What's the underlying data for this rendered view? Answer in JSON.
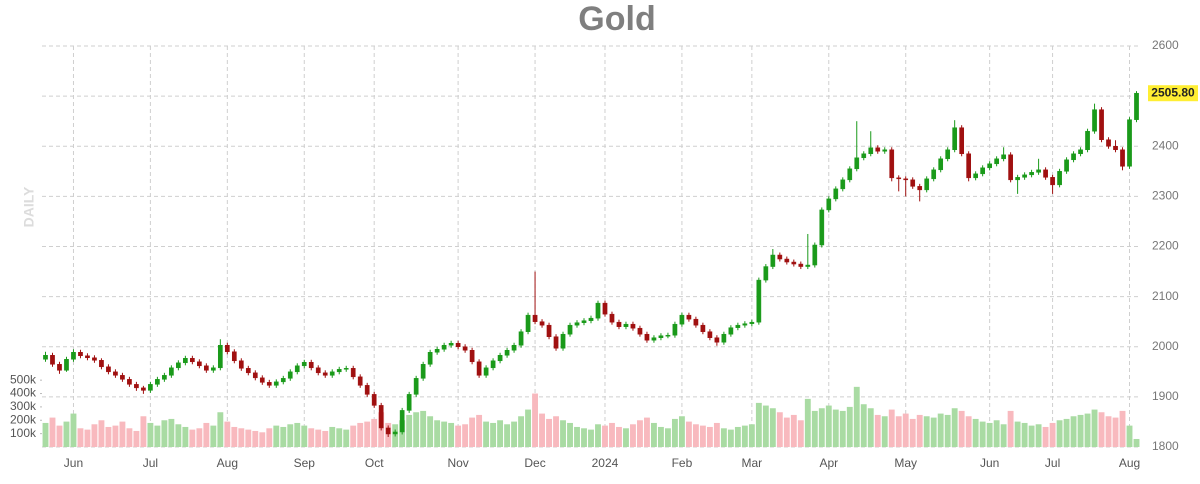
{
  "chart_data": {
    "type": "candlestick",
    "title": "Gold",
    "annotation": "DAILY",
    "last_price_label": "2505.80",
    "grid": true,
    "up_color": "#1a9a1a",
    "down_color": "#a01010",
    "volume_up_color": "#a9dba3",
    "volume_down_color": "#f8b9be",
    "xlim": [
      -0.5,
      156.5
    ],
    "xticks": [
      {
        "value": 4,
        "label": "Jun"
      },
      {
        "value": 15,
        "label": "Jul"
      },
      {
        "value": 26,
        "label": "Aug"
      },
      {
        "value": 37,
        "label": "Sep"
      },
      {
        "value": 47,
        "label": "Oct"
      },
      {
        "value": 59,
        "label": "Nov"
      },
      {
        "value": 70,
        "label": "Dec"
      },
      {
        "value": 80,
        "label": "2024"
      },
      {
        "value": 91,
        "label": "Feb"
      },
      {
        "value": 101,
        "label": "Mar"
      },
      {
        "value": 112,
        "label": "Apr"
      },
      {
        "value": 123,
        "label": "May"
      },
      {
        "value": 135,
        "label": "Jun"
      },
      {
        "value": 144,
        "label": "Jul"
      },
      {
        "value": 155,
        "label": "Aug"
      }
    ],
    "ylim": [
      1800,
      2600
    ],
    "yticks": [
      1800,
      1900,
      2000,
      2100,
      2200,
      2300,
      2400,
      2500,
      2600
    ],
    "y2lim": [
      0,
      3000000
    ],
    "y2ticks": [
      {
        "value": 100000,
        "label": "100k"
      },
      {
        "value": 200000,
        "label": "200k"
      },
      {
        "value": 300000,
        "label": "300k"
      },
      {
        "value": 400000,
        "label": "400k"
      },
      {
        "value": 500000,
        "label": "500k"
      }
    ],
    "ohlc": [
      [
        1975,
        1990,
        1970,
        1983
      ],
      [
        1983,
        1988,
        1960,
        1965
      ],
      [
        1965,
        1970,
        1946,
        1953
      ],
      [
        1953,
        1980,
        1950,
        1975
      ],
      [
        1975,
        1995,
        1970,
        1989
      ],
      [
        1989,
        1994,
        1977,
        1982
      ],
      [
        1982,
        1987,
        1973,
        1978
      ],
      [
        1978,
        1983,
        1968,
        1973
      ],
      [
        1973,
        1977,
        1955,
        1960
      ],
      [
        1960,
        1965,
        1945,
        1950
      ],
      [
        1950,
        1955,
        1938,
        1943
      ],
      [
        1943,
        1948,
        1930,
        1935
      ],
      [
        1935,
        1940,
        1920,
        1925
      ],
      [
        1925,
        1930,
        1912,
        1918
      ],
      [
        1918,
        1922,
        1906,
        1913
      ],
      [
        1913,
        1930,
        1908,
        1925
      ],
      [
        1925,
        1940,
        1920,
        1935
      ],
      [
        1935,
        1948,
        1930,
        1943
      ],
      [
        1943,
        1963,
        1938,
        1958
      ],
      [
        1958,
        1973,
        1953,
        1968
      ],
      [
        1968,
        1982,
        1963,
        1977
      ],
      [
        1977,
        1982,
        1965,
        1970
      ],
      [
        1970,
        1975,
        1957,
        1962
      ],
      [
        1962,
        1967,
        1948,
        1953
      ],
      [
        1953,
        1963,
        1948,
        1958
      ],
      [
        1958,
        2015,
        1953,
        2003
      ],
      [
        2003,
        2008,
        1985,
        1990
      ],
      [
        1990,
        1995,
        1967,
        1972
      ],
      [
        1972,
        1977,
        1952,
        1957
      ],
      [
        1957,
        1962,
        1943,
        1948
      ],
      [
        1948,
        1953,
        1933,
        1938
      ],
      [
        1938,
        1943,
        1924,
        1929
      ],
      [
        1929,
        1934,
        1918,
        1923
      ],
      [
        1923,
        1935,
        1918,
        1930
      ],
      [
        1930,
        1942,
        1925,
        1937
      ],
      [
        1937,
        1955,
        1932,
        1950
      ],
      [
        1950,
        1967,
        1945,
        1962
      ],
      [
        1962,
        1974,
        1957,
        1969
      ],
      [
        1969,
        1974,
        1953,
        1958
      ],
      [
        1958,
        1963,
        1943,
        1948
      ],
      [
        1948,
        1953,
        1938,
        1943
      ],
      [
        1943,
        1955,
        1938,
        1950
      ],
      [
        1950,
        1960,
        1945,
        1955
      ],
      [
        1955,
        1962,
        1950,
        1957
      ],
      [
        1957,
        1962,
        1935,
        1940
      ],
      [
        1940,
        1945,
        1918,
        1923
      ],
      [
        1923,
        1928,
        1900,
        1905
      ],
      [
        1905,
        1910,
        1878,
        1883
      ],
      [
        1883,
        1888,
        1833,
        1838
      ],
      [
        1838,
        1843,
        1820,
        1826
      ],
      [
        1826,
        1835,
        1821,
        1830
      ],
      [
        1830,
        1878,
        1825,
        1873
      ],
      [
        1873,
        1910,
        1868,
        1905
      ],
      [
        1905,
        1942,
        1900,
        1937
      ],
      [
        1937,
        1970,
        1932,
        1965
      ],
      [
        1965,
        1994,
        1960,
        1989
      ],
      [
        1989,
        2000,
        1984,
        1995
      ],
      [
        1995,
        2008,
        1990,
        2003
      ],
      [
        2003,
        2012,
        1998,
        2007
      ],
      [
        2007,
        2012,
        1995,
        2000
      ],
      [
        2000,
        2005,
        1988,
        1993
      ],
      [
        1993,
        1998,
        1965,
        1970
      ],
      [
        1970,
        1975,
        1938,
        1943
      ],
      [
        1943,
        1963,
        1938,
        1958
      ],
      [
        1958,
        1977,
        1953,
        1972
      ],
      [
        1972,
        1988,
        1967,
        1983
      ],
      [
        1983,
        1998,
        1978,
        1993
      ],
      [
        1993,
        2008,
        1988,
        2003
      ],
      [
        2003,
        2035,
        1998,
        2030
      ],
      [
        2030,
        2068,
        2025,
        2063
      ],
      [
        2063,
        2150,
        2045,
        2050
      ],
      [
        2050,
        2055,
        2038,
        2043
      ],
      [
        2043,
        2048,
        2015,
        2020
      ],
      [
        2020,
        2025,
        1992,
        1997
      ],
      [
        1997,
        2030,
        1992,
        2025
      ],
      [
        2025,
        2048,
        2020,
        2043
      ],
      [
        2043,
        2053,
        2038,
        2048
      ],
      [
        2048,
        2057,
        2043,
        2052
      ],
      [
        2052,
        2062,
        2047,
        2057
      ],
      [
        2057,
        2092,
        2052,
        2087
      ],
      [
        2087,
        2092,
        2060,
        2065
      ],
      [
        2065,
        2070,
        2044,
        2049
      ],
      [
        2049,
        2054,
        2035,
        2040
      ],
      [
        2040,
        2050,
        2035,
        2045
      ],
      [
        2045,
        2050,
        2032,
        2037
      ],
      [
        2037,
        2042,
        2020,
        2025
      ],
      [
        2025,
        2030,
        2008,
        2013
      ],
      [
        2013,
        2023,
        2008,
        2018
      ],
      [
        2018,
        2027,
        2013,
        2022
      ],
      [
        2022,
        2028,
        2017,
        2023
      ],
      [
        2023,
        2050,
        2018,
        2045
      ],
      [
        2045,
        2068,
        2040,
        2063
      ],
      [
        2063,
        2068,
        2050,
        2055
      ],
      [
        2055,
        2060,
        2038,
        2043
      ],
      [
        2043,
        2048,
        2025,
        2030
      ],
      [
        2030,
        2035,
        2013,
        2018
      ],
      [
        2018,
        2023,
        2002,
        2009
      ],
      [
        2009,
        2030,
        2004,
        2025
      ],
      [
        2025,
        2043,
        2020,
        2038
      ],
      [
        2038,
        2048,
        2033,
        2043
      ],
      [
        2043,
        2051,
        2038,
        2046
      ],
      [
        2046,
        2054,
        2041,
        2049
      ],
      [
        2049,
        2138,
        2044,
        2133
      ],
      [
        2133,
        2165,
        2128,
        2160
      ],
      [
        2160,
        2195,
        2155,
        2183
      ],
      [
        2183,
        2188,
        2170,
        2175
      ],
      [
        2175,
        2180,
        2164,
        2169
      ],
      [
        2169,
        2174,
        2160,
        2165
      ],
      [
        2165,
        2170,
        2155,
        2160
      ],
      [
        2160,
        2225,
        2155,
        2163
      ],
      [
        2163,
        2208,
        2158,
        2203
      ],
      [
        2203,
        2278,
        2198,
        2273
      ],
      [
        2273,
        2300,
        2268,
        2295
      ],
      [
        2295,
        2320,
        2290,
        2315
      ],
      [
        2315,
        2338,
        2310,
        2333
      ],
      [
        2333,
        2360,
        2328,
        2355
      ],
      [
        2355,
        2450,
        2350,
        2377
      ],
      [
        2377,
        2390,
        2372,
        2385
      ],
      [
        2385,
        2430,
        2380,
        2397
      ],
      [
        2397,
        2402,
        2385,
        2390
      ],
      [
        2390,
        2398,
        2385,
        2393
      ],
      [
        2393,
        2398,
        2330,
        2337
      ],
      [
        2337,
        2342,
        2310,
        2335
      ],
      [
        2335,
        2340,
        2300,
        2333
      ],
      [
        2333,
        2338,
        2315,
        2320
      ],
      [
        2320,
        2325,
        2290,
        2313
      ],
      [
        2313,
        2340,
        2308,
        2335
      ],
      [
        2335,
        2358,
        2330,
        2353
      ],
      [
        2353,
        2380,
        2348,
        2375
      ],
      [
        2375,
        2398,
        2370,
        2393
      ],
      [
        2393,
        2452,
        2388,
        2437
      ],
      [
        2437,
        2442,
        2380,
        2385
      ],
      [
        2385,
        2390,
        2330,
        2337
      ],
      [
        2337,
        2350,
        2332,
        2345
      ],
      [
        2345,
        2362,
        2340,
        2357
      ],
      [
        2357,
        2370,
        2352,
        2365
      ],
      [
        2365,
        2380,
        2360,
        2375
      ],
      [
        2375,
        2398,
        2370,
        2383
      ],
      [
        2383,
        2388,
        2328,
        2333
      ],
      [
        2333,
        2343,
        2305,
        2338
      ],
      [
        2338,
        2348,
        2333,
        2343
      ],
      [
        2343,
        2353,
        2338,
        2348
      ],
      [
        2348,
        2375,
        2343,
        2353
      ],
      [
        2353,
        2358,
        2333,
        2338
      ],
      [
        2338,
        2343,
        2305,
        2323
      ],
      [
        2323,
        2355,
        2318,
        2350
      ],
      [
        2350,
        2378,
        2345,
        2373
      ],
      [
        2373,
        2390,
        2368,
        2385
      ],
      [
        2385,
        2398,
        2380,
        2393
      ],
      [
        2393,
        2435,
        2388,
        2430
      ],
      [
        2430,
        2485,
        2425,
        2473
      ],
      [
        2473,
        2478,
        2408,
        2413
      ],
      [
        2413,
        2418,
        2395,
        2400
      ],
      [
        2400,
        2412,
        2388,
        2393
      ],
      [
        2393,
        2398,
        2352,
        2360
      ],
      [
        2360,
        2458,
        2355,
        2453
      ],
      [
        2453,
        2510,
        2448,
        2505.8
      ]
    ],
    "volume": [
      180000,
      220000,
      160000,
      190000,
      250000,
      140000,
      130000,
      170000,
      200000,
      150000,
      160000,
      190000,
      140000,
      120000,
      230000,
      180000,
      160000,
      200000,
      210000,
      170000,
      150000,
      130000,
      140000,
      180000,
      160000,
      260000,
      190000,
      150000,
      140000,
      130000,
      120000,
      110000,
      140000,
      160000,
      150000,
      170000,
      180000,
      160000,
      140000,
      130000,
      120000,
      150000,
      140000,
      130000,
      160000,
      180000,
      190000,
      210000,
      260000,
      180000,
      170000,
      200000,
      240000,
      260000,
      270000,
      230000,
      200000,
      190000,
      180000,
      160000,
      170000,
      220000,
      240000,
      190000,
      180000,
      200000,
      170000,
      190000,
      230000,
      280000,
      400000,
      250000,
      210000,
      230000,
      200000,
      180000,
      150000,
      140000,
      130000,
      170000,
      160000,
      180000,
      150000,
      140000,
      170000,
      200000,
      220000,
      180000,
      150000,
      140000,
      210000,
      230000,
      190000,
      170000,
      160000,
      150000,
      180000,
      140000,
      130000,
      150000,
      160000,
      170000,
      330000,
      310000,
      290000,
      260000,
      220000,
      240000,
      200000,
      360000,
      270000,
      290000,
      310000,
      280000,
      270000,
      300000,
      450000,
      320000,
      290000,
      240000,
      230000,
      280000,
      230000,
      250000,
      210000,
      240000,
      230000,
      220000,
      250000,
      240000,
      290000,
      270000,
      230000,
      210000,
      190000,
      180000,
      200000,
      170000,
      270000,
      190000,
      180000,
      160000,
      170000,
      150000,
      180000,
      200000,
      210000,
      230000,
      240000,
      250000,
      280000,
      260000,
      230000,
      220000,
      270000,
      160000,
      60000
    ]
  }
}
